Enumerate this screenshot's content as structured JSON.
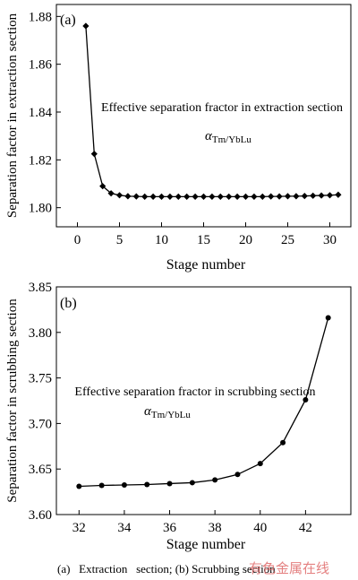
{
  "caption": "(a)   Extraction   section; (b) Scrubbing section",
  "watermark": "有色金属在线",
  "chart_data": [
    {
      "type": "line",
      "panel_label": "(a)",
      "xlabel": "Stage number",
      "ylabel": "Separation factor in extraction section",
      "xlim": [
        -2.5,
        32.5
      ],
      "ylim": [
        1.792,
        1.885
      ],
      "xticks": [
        0,
        5,
        10,
        15,
        20,
        25,
        30
      ],
      "yticks": [
        1.8,
        1.82,
        1.84,
        1.86,
        1.88
      ],
      "ytick_labels": [
        "1.80",
        "1.82",
        "1.84",
        "1.86",
        "1.88"
      ],
      "marker": "diamond",
      "x": [
        1,
        2,
        3,
        4,
        5,
        6,
        7,
        8,
        9,
        10,
        11,
        12,
        13,
        14,
        15,
        16,
        17,
        18,
        19,
        20,
        21,
        22,
        23,
        24,
        25,
        26,
        27,
        28,
        29,
        30,
        31
      ],
      "values": [
        1.876,
        1.8225,
        1.809,
        1.806,
        1.8052,
        1.8048,
        1.8047,
        1.8046,
        1.8046,
        1.8046,
        1.8046,
        1.8046,
        1.8046,
        1.8046,
        1.8046,
        1.8046,
        1.8046,
        1.8046,
        1.8046,
        1.8046,
        1.8046,
        1.8046,
        1.8047,
        1.8047,
        1.8048,
        1.8048,
        1.8049,
        1.805,
        1.8051,
        1.8052,
        1.8054
      ],
      "reference_line": {
        "label": "Effective separation fractor in extraction section",
        "value": 1.84,
        "x_range": [
          0.5,
          30.5
        ],
        "symbol_main": "α",
        "symbol_sub": "Tm/YbLu"
      }
    },
    {
      "type": "line",
      "panel_label": "(b)",
      "xlabel": "Stage number",
      "ylabel": "Separation factor in scrubbing section",
      "xlim": [
        31,
        44
      ],
      "ylim": [
        3.6,
        3.85
      ],
      "xticks": [
        32,
        34,
        36,
        38,
        40,
        42
      ],
      "yticks": [
        3.6,
        3.65,
        3.7,
        3.75,
        3.8,
        3.85
      ],
      "ytick_labels": [
        "3.60",
        "3.65",
        "3.70",
        "3.75",
        "3.80",
        "3.85"
      ],
      "marker": "circle",
      "x": [
        32,
        33,
        34,
        35,
        36,
        37,
        38,
        39,
        40,
        41,
        42,
        43
      ],
      "values": [
        3.631,
        3.632,
        3.6325,
        3.633,
        3.634,
        3.635,
        3.638,
        3.644,
        3.656,
        3.679,
        3.726,
        3.816
      ],
      "reference_line": {
        "label": "Effective separation fractor in scrubbing section",
        "value": 3.725,
        "x_range": [
          31.7,
          43.2
        ],
        "symbol_main": "α",
        "symbol_sub": "Tm/YbLu"
      }
    }
  ]
}
